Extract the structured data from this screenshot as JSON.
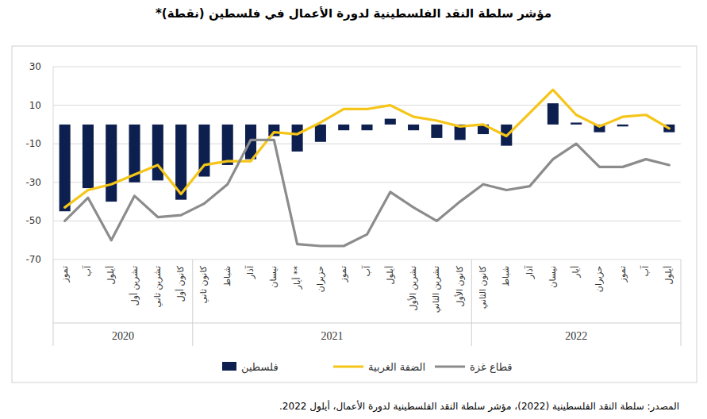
{
  "chart_data": {
    "type": "bar",
    "title": "مؤشر سلطة النقد الفلسطينية لدورة الأعمال في فلسطين (نقطة)*",
    "source": "المصدر: سلطة النقد الفلسطينية (2022)، مؤشر سلطة النقد الفلسطينية لدورة الأعمال، أيلول 2022.",
    "categories": [
      "تموز",
      "آب",
      "أيلول",
      "تشرين أول",
      "تشرين ثاني",
      "كانون أول",
      "كانون ثاني",
      "شباط",
      "آذار",
      "نيسان",
      "أيار **",
      "حزيران",
      "تموز",
      "آب",
      "أيلول",
      "تشرين الأول",
      "تشرين الثاني",
      "كانون الأول",
      "كانون الثاني",
      "شباط",
      "آذار",
      "نيسان",
      "أيار",
      "حزيران",
      "تموز",
      "آب",
      "أيلول"
    ],
    "year_groups": [
      {
        "label": "2020",
        "count": 6
      },
      {
        "label": "2021",
        "count": 12
      },
      {
        "label": "2022",
        "count": 9
      }
    ],
    "series": [
      {
        "name": "فلسطين",
        "type": "bar",
        "color": "#0d1f4f",
        "values": [
          -45,
          -33,
          -40,
          -30,
          -29,
          -39,
          -27,
          -21,
          -18,
          -6,
          -14,
          -9,
          -3,
          -3,
          3,
          -3,
          -7,
          -8,
          -5,
          -11,
          null,
          11,
          1,
          -4,
          -1,
          0,
          -4
        ]
      },
      {
        "name": "الضفة الغربية",
        "type": "line",
        "color": "#f5c518",
        "values": [
          -43,
          -34,
          -31,
          -26,
          -21,
          -36,
          -21,
          -19,
          -19,
          -4,
          -5,
          1,
          8,
          8,
          10,
          4,
          2,
          -1,
          0,
          -6,
          6,
          18,
          5,
          -1,
          4,
          5,
          -2
        ]
      },
      {
        "name": "قطاع غزة",
        "type": "line",
        "color": "#8c8c8c",
        "values": [
          -50,
          -38,
          -60,
          -37,
          -48,
          -47,
          -41,
          -31,
          -8,
          -8,
          -62,
          -63,
          -63,
          -57,
          -35,
          -43,
          -50,
          -40,
          -31,
          -34,
          -32,
          -18,
          -10,
          -22,
          -22,
          -18,
          -21
        ]
      }
    ],
    "ylim": [
      -70,
      30
    ],
    "yticks": [
      -70,
      -50,
      -30,
      -10,
      10,
      30
    ],
    "grid": true,
    "legend": "bottom"
  }
}
